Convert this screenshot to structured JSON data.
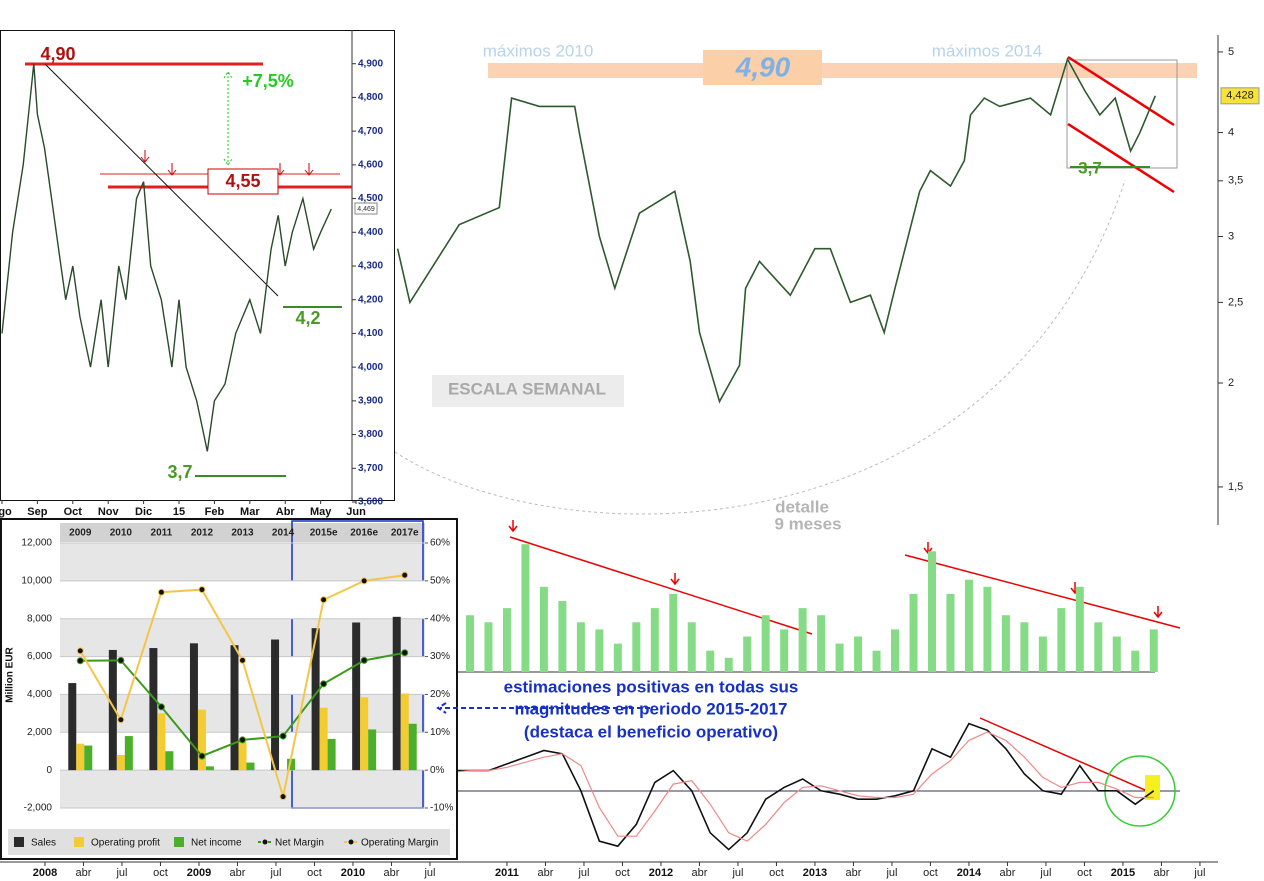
{
  "chart_data": [
    {
      "type": "line",
      "log_scale": true,
      "color": "#2f5a2f",
      "x": [
        2010.29,
        2010.37,
        2010.69,
        2010.95,
        2011.03,
        2011.21,
        2011.44,
        2011.47,
        2011.6,
        2011.7,
        2011.86,
        2012.09,
        2012.19,
        2012.25,
        2012.38,
        2012.51,
        2012.55,
        2012.64,
        2012.84,
        2013.0,
        2013.1,
        2013.23,
        2013.36,
        2013.45,
        2013.52,
        2013.68,
        2013.75,
        2013.88,
        2013.97,
        2014.01,
        2014.1,
        2014.2,
        2014.4,
        2014.53,
        2014.64,
        2014.75,
        2014.85,
        2014.95,
        2015.05,
        2015.11,
        2015.21
      ],
      "values": [
        2.9,
        2.5,
        3.1,
        3.25,
        4.4,
        4.3,
        4.3,
        4.0,
        3.0,
        2.6,
        3.2,
        3.4,
        2.8,
        2.3,
        1.9,
        2.1,
        2.6,
        2.8,
        2.55,
        2.9,
        2.9,
        2.5,
        2.55,
        2.3,
        2.6,
        3.4,
        3.6,
        3.45,
        3.7,
        4.2,
        4.4,
        4.3,
        4.4,
        4.2,
        4.9,
        4.5,
        4.2,
        4.4,
        3.8,
        4.0,
        4.428
      ],
      "last_value": {
        "value": 4.428,
        "label": "4,428"
      },
      "xlim": [
        2007.708,
        2015.916
      ],
      "xticks": [
        {
          "value": 2008,
          "label": "2008"
        },
        {
          "value": 2008.25,
          "label": "abr"
        },
        {
          "value": 2008.5,
          "label": "jul"
        },
        {
          "value": 2008.75,
          "label": "oct"
        },
        {
          "value": 2009,
          "label": "2009"
        },
        {
          "value": 2009.25,
          "label": "abr"
        },
        {
          "value": 2009.5,
          "label": "jul"
        },
        {
          "value": 2009.75,
          "label": "oct"
        },
        {
          "value": 2010,
          "label": "2010"
        },
        {
          "value": 2010.25,
          "label": "abr"
        },
        {
          "value": 2010.5,
          "label": "jul"
        },
        {
          "value": 2011,
          "label": "2011"
        },
        {
          "value": 2011.25,
          "label": "abr"
        },
        {
          "value": 2011.5,
          "label": "jul"
        },
        {
          "value": 2011.75,
          "label": "oct"
        },
        {
          "value": 2012,
          "label": "2012"
        },
        {
          "value": 2012.25,
          "label": "abr"
        },
        {
          "value": 2012.5,
          "label": "jul"
        },
        {
          "value": 2012.75,
          "label": "oct"
        },
        {
          "value": 2013,
          "label": "2013"
        },
        {
          "value": 2013.25,
          "label": "abr"
        },
        {
          "value": 2013.5,
          "label": "jul"
        },
        {
          "value": 2013.75,
          "label": "oct"
        },
        {
          "value": 2014,
          "label": "2014"
        },
        {
          "value": 2014.25,
          "label": "abr"
        },
        {
          "value": 2014.5,
          "label": "jul"
        },
        {
          "value": 2014.75,
          "label": "oct"
        },
        {
          "value": 2015,
          "label": "2015"
        },
        {
          "value": 2015.25,
          "label": "abr"
        },
        {
          "value": 2015.5,
          "label": "jul"
        }
      ],
      "ylim": [
        1.35,
        5.24
      ],
      "yticks": [
        {
          "value": 1.5,
          "label": "1,5"
        },
        2,
        {
          "value": 2.5,
          "label": "2,5"
        },
        3,
        {
          "value": 3.5,
          "label": "3,5"
        },
        4,
        5
      ],
      "annotations": [
        "máximos 2010",
        "4,90",
        "máximos 2014",
        "3,7",
        "ESCALA SEMANAL",
        "detalle",
        "9 meses"
      ]
    },
    {
      "type": "line",
      "color": "#2a4a2a",
      "x": [
        0,
        0.3,
        0.6,
        0.8,
        0.9,
        1.0,
        1.2,
        1.4,
        1.6,
        1.8,
        2.0,
        2.2,
        2.5,
        2.8,
        3.0,
        3.3,
        3.5,
        3.8,
        4.0,
        4.2,
        4.5,
        4.8,
        5.0,
        5.2,
        5.5,
        5.7,
        5.8,
        6.0,
        6.3,
        6.6,
        7.0,
        7.3,
        7.6,
        7.8,
        8.0,
        8.2,
        8.5,
        8.8,
        9.0,
        9.3
      ],
      "values": [
        4.1,
        4.4,
        4.6,
        4.8,
        4.9,
        4.75,
        4.65,
        4.5,
        4.35,
        4.2,
        4.3,
        4.15,
        4.0,
        4.2,
        4.0,
        4.3,
        4.2,
        4.5,
        4.55,
        4.3,
        4.2,
        4.0,
        4.2,
        4.0,
        3.9,
        3.8,
        3.75,
        3.9,
        3.95,
        4.1,
        4.2,
        4.1,
        4.35,
        4.45,
        4.3,
        4.4,
        4.5,
        4.35,
        4.4,
        4.469
      ],
      "last_value": {
        "value": 4.469,
        "label": "4,469"
      },
      "xlim": [
        -0.056,
        11.1
      ],
      "xticks": [
        {
          "value": 0,
          "label": "ago"
        },
        {
          "value": 1,
          "label": "Sep"
        },
        {
          "value": 2,
          "label": "Oct"
        },
        {
          "value": 3,
          "label": "Nov"
        },
        {
          "value": 4,
          "label": "Dic"
        },
        {
          "value": 5,
          "label": "15"
        },
        {
          "value": 6,
          "label": "Feb"
        },
        {
          "value": 7,
          "label": "Mar"
        },
        {
          "value": 8,
          "label": "Abr"
        },
        {
          "value": 9,
          "label": "May"
        },
        {
          "value": 10,
          "label": "Jun"
        }
      ],
      "ylim": [
        3.6,
        5.0
      ],
      "yticks": [
        {
          "value": 3.6,
          "label": "3,600"
        },
        {
          "value": 3.7,
          "label": "3,700"
        },
        {
          "value": 3.8,
          "label": "3,800"
        },
        {
          "value": 3.9,
          "label": "3,900"
        },
        {
          "value": 4.0,
          "label": "4,000"
        },
        {
          "value": 4.1,
          "label": "4,100"
        },
        {
          "value": 4.2,
          "label": "4,200"
        },
        {
          "value": 4.3,
          "label": "4,300"
        },
        {
          "value": 4.4,
          "label": "4,400"
        },
        {
          "value": 4.5,
          "label": "4,500"
        },
        {
          "value": 4.6,
          "label": "4,600"
        },
        {
          "value": 4.7,
          "label": "4,700"
        },
        {
          "value": 4.8,
          "label": "4,800"
        },
        {
          "value": 4.9,
          "label": "4,900"
        }
      ],
      "annotations": [
        "4,90",
        "+7,5%",
        "4,55",
        "4,2",
        "3,7"
      ]
    },
    {
      "type": "bar",
      "color": "#86dc86",
      "x": [
        2010.4,
        2010.52,
        2010.64,
        2010.76,
        2010.88,
        2011.0,
        2011.12,
        2011.24,
        2011.36,
        2011.48,
        2011.6,
        2011.72,
        2011.84,
        2011.96,
        2012.08,
        2012.2,
        2012.32,
        2012.44,
        2012.56,
        2012.68,
        2012.8,
        2012.92,
        2013.04,
        2013.16,
        2013.28,
        2013.4,
        2013.52,
        2013.64,
        2013.76,
        2013.88,
        2014.0,
        2014.12,
        2014.24,
        2014.36,
        2014.48,
        2014.6,
        2014.72,
        2014.84,
        2014.96,
        2015.08,
        2015.2
      ],
      "values": [
        35,
        40,
        45,
        40,
        35,
        45,
        90,
        60,
        50,
        35,
        30,
        20,
        35,
        45,
        55,
        35,
        15,
        10,
        25,
        40,
        30,
        45,
        40,
        20,
        25,
        15,
        30,
        55,
        85,
        55,
        65,
        60,
        40,
        35,
        25,
        45,
        60,
        35,
        25,
        15,
        30
      ],
      "xlim": [
        2007.708,
        2015.916
      ],
      "ylim": [
        0,
        100
      ]
    },
    {
      "type": "line",
      "x": [
        2010.4,
        2010.52,
        2010.64,
        2010.76,
        2010.88,
        2011.0,
        2011.12,
        2011.24,
        2011.36,
        2011.48,
        2011.6,
        2011.72,
        2011.84,
        2011.96,
        2012.08,
        2012.2,
        2012.32,
        2012.44,
        2012.56,
        2012.68,
        2012.8,
        2012.92,
        2013.04,
        2013.16,
        2013.28,
        2013.4,
        2013.52,
        2013.64,
        2013.76,
        2013.88,
        2014.0,
        2014.12,
        2014.24,
        2014.36,
        2014.48,
        2014.6,
        2014.72,
        2014.84,
        2014.96,
        2015.08,
        2015.2
      ],
      "series": [
        {
          "color": "#111111",
          "values": [
            0.1,
            0.11,
            0.12,
            0.12,
            0.12,
            0.16,
            0.2,
            0.24,
            0.22,
            0.0,
            -0.3,
            -0.33,
            -0.2,
            0.05,
            0.12,
            0.0,
            -0.25,
            -0.35,
            -0.25,
            -0.05,
            0.02,
            0.07,
            0.0,
            -0.02,
            -0.05,
            -0.05,
            -0.03,
            0.0,
            0.25,
            0.2,
            0.4,
            0.36,
            0.25,
            0.1,
            0.0,
            -0.02,
            0.15,
            0.0,
            0.0,
            -0.08,
            0.0
          ]
        },
        {
          "color": "#f08888",
          "values": [
            0.09,
            0.1,
            0.11,
            0.12,
            0.12,
            0.14,
            0.17,
            0.2,
            0.22,
            0.15,
            -0.1,
            -0.27,
            -0.27,
            -0.12,
            0.04,
            0.06,
            -0.08,
            -0.25,
            -0.3,
            -0.2,
            -0.07,
            0.02,
            0.03,
            0.0,
            -0.03,
            -0.04,
            -0.04,
            -0.02,
            0.1,
            0.18,
            0.3,
            0.35,
            0.3,
            0.2,
            0.08,
            0.02,
            0.05,
            0.05,
            0.01,
            -0.04,
            -0.04
          ]
        }
      ],
      "xlim": [
        2007.708,
        2015.916
      ],
      "ylim": [
        -0.4,
        0.6
      ]
    },
    {
      "type": "bar",
      "grid": true,
      "categories": [
        "2009",
        "2010",
        "2011",
        "2012",
        "2013",
        "2014",
        "2015e",
        "2016e",
        "2017e"
      ],
      "y_label": "Million EUR",
      "series": [
        {
          "name": "Sales",
          "color": "#2b2b2b",
          "values": [
            4600,
            6350,
            6450,
            6700,
            6600,
            6900,
            7500,
            7800,
            8100
          ]
        },
        {
          "name": "Operating profit",
          "color": "#f2cc30",
          "values": [
            1400,
            800,
            3000,
            3200,
            1500,
            0,
            3300,
            3850,
            4050
          ]
        },
        {
          "name": "Net income",
          "color": "#4caf2a",
          "values": [
            1300,
            1800,
            1000,
            200,
            400,
            600,
            1650,
            2150,
            2450
          ]
        },
        {
          "name": "Net Margin",
          "color": "#3a9a1a",
          "type": "line",
          "axis": "y2",
          "values": [
            28.9,
            29,
            16.7,
            3.7,
            8,
            9,
            22.8,
            29,
            31
          ]
        },
        {
          "name": "Operating Margin",
          "color": "#f3c64a",
          "type": "line",
          "axis": "y2",
          "values": [
            31.5,
            13.3,
            47,
            47.7,
            29,
            -7,
            45,
            50,
            51.5
          ]
        }
      ],
      "ylim": [
        -2000,
        12000
      ],
      "yticks": [
        {
          "value": -2000,
          "label": "-2,000"
        },
        0,
        {
          "value": 2000,
          "label": "2,000"
        },
        {
          "value": 4000,
          "label": "4,000"
        },
        {
          "value": 6000,
          "label": "6,000"
        },
        {
          "value": 8000,
          "label": "8,000"
        },
        {
          "value": 10000,
          "label": "10,000"
        },
        {
          "value": 12000,
          "label": "12,000"
        }
      ],
      "y2lim": [
        -10,
        60
      ],
      "y2ticks": [
        {
          "value": -10,
          "label": "-10%"
        },
        {
          "value": 0,
          "label": "0%"
        },
        {
          "value": 10,
          "label": "10%"
        },
        {
          "value": 20,
          "label": "20%"
        },
        {
          "value": 30,
          "label": "30%"
        },
        {
          "value": 40,
          "label": "40%"
        },
        {
          "value": 50,
          "label": "50%"
        },
        {
          "value": 60,
          "label": "60%"
        }
      ]
    }
  ],
  "note": {
    "lines": [
      "estimaciones positivas en todas sus",
      "magnitudes en periodo 2015-2017",
      "(destaca el beneficio operativo)"
    ]
  }
}
